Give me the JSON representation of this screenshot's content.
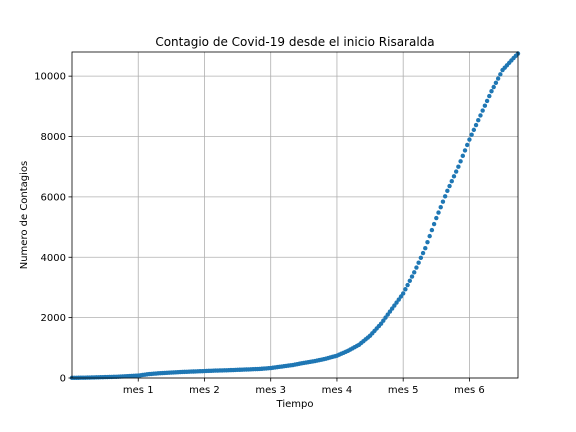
{
  "chart_data": {
    "type": "scatter",
    "title": "Contagio de Covid-19 desde el inicio Risaralda",
    "xlabel": "Tiempo",
    "ylabel": "Numero de Contagios",
    "x_unit": "days since first case",
    "x_ticks": [
      {
        "value": 30,
        "label": "mes 1"
      },
      {
        "value": 60,
        "label": "mes 2"
      },
      {
        "value": 90,
        "label": "mes 3"
      },
      {
        "value": 120,
        "label": "mes 4"
      },
      {
        "value": 150,
        "label": "mes 5"
      },
      {
        "value": 180,
        "label": "mes 6"
      }
    ],
    "y_ticks": [
      0,
      2000,
      4000,
      6000,
      8000,
      10000
    ],
    "xlim": [
      0,
      202
    ],
    "ylim": [
      0,
      10800
    ],
    "grid": true,
    "marker_color": "#1f77b4",
    "series": [
      {
        "name": "",
        "x": [
          0,
          5,
          10,
          15,
          20,
          25,
          30,
          35,
          40,
          45,
          50,
          55,
          60,
          65,
          70,
          75,
          80,
          85,
          90,
          95,
          100,
          105,
          110,
          115,
          120,
          125,
          130,
          135,
          140,
          145,
          150,
          155,
          160,
          165,
          170,
          175,
          180,
          185,
          190,
          195,
          200,
          202
        ],
        "y": [
          5,
          10,
          20,
          30,
          40,
          60,
          80,
          130,
          160,
          180,
          200,
          215,
          230,
          245,
          255,
          270,
          285,
          300,
          330,
          380,
          430,
          500,
          560,
          640,
          740,
          900,
          1100,
          1400,
          1800,
          2300,
          2800,
          3500,
          4300,
          5300,
          6200,
          7000,
          7900,
          8700,
          9500,
          10200,
          10600,
          10750
        ]
      }
    ]
  }
}
